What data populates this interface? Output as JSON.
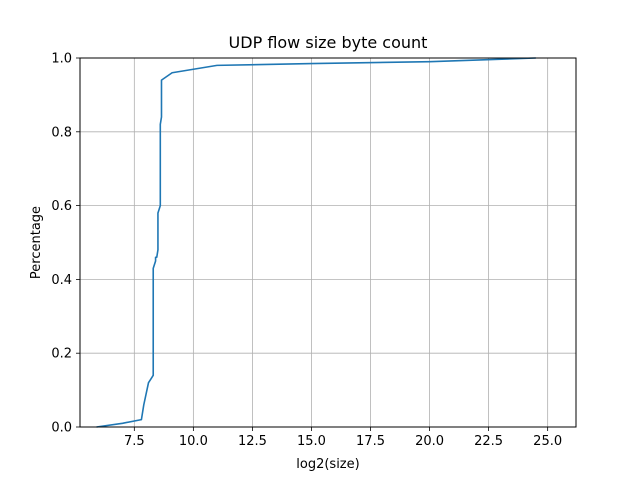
{
  "chart_data": {
    "type": "line",
    "title": "UDP flow size byte count",
    "xlabel": "log2(size)",
    "ylabel": "Percentage",
    "xlim": [
      5.2,
      26.2
    ],
    "ylim": [
      0,
      1.0
    ],
    "x_ticks": [
      "7.5",
      "10.0",
      "12.5",
      "15.0",
      "17.5",
      "20.0",
      "22.5",
      "25.0"
    ],
    "y_ticks": [
      "0.0",
      "0.2",
      "0.4",
      "0.6",
      "0.8",
      "1.0"
    ],
    "grid": true,
    "series": [
      {
        "color": "#1f77b4",
        "x": [
          5.9,
          7.0,
          7.8,
          7.9,
          8.1,
          8.2,
          8.3,
          8.3,
          8.3,
          8.3,
          8.4,
          8.4,
          8.45,
          8.5,
          8.5,
          8.5,
          8.6,
          8.6,
          8.6,
          8.6,
          8.65,
          8.65,
          9.1,
          11.0,
          15.0,
          20.0,
          24.5
        ],
        "y": [
          0.0,
          0.01,
          0.02,
          0.06,
          0.12,
          0.13,
          0.14,
          0.2,
          0.4,
          0.43,
          0.45,
          0.46,
          0.46,
          0.48,
          0.52,
          0.58,
          0.6,
          0.62,
          0.7,
          0.82,
          0.84,
          0.94,
          0.96,
          0.98,
          0.985,
          0.99,
          1.0
        ]
      }
    ]
  }
}
